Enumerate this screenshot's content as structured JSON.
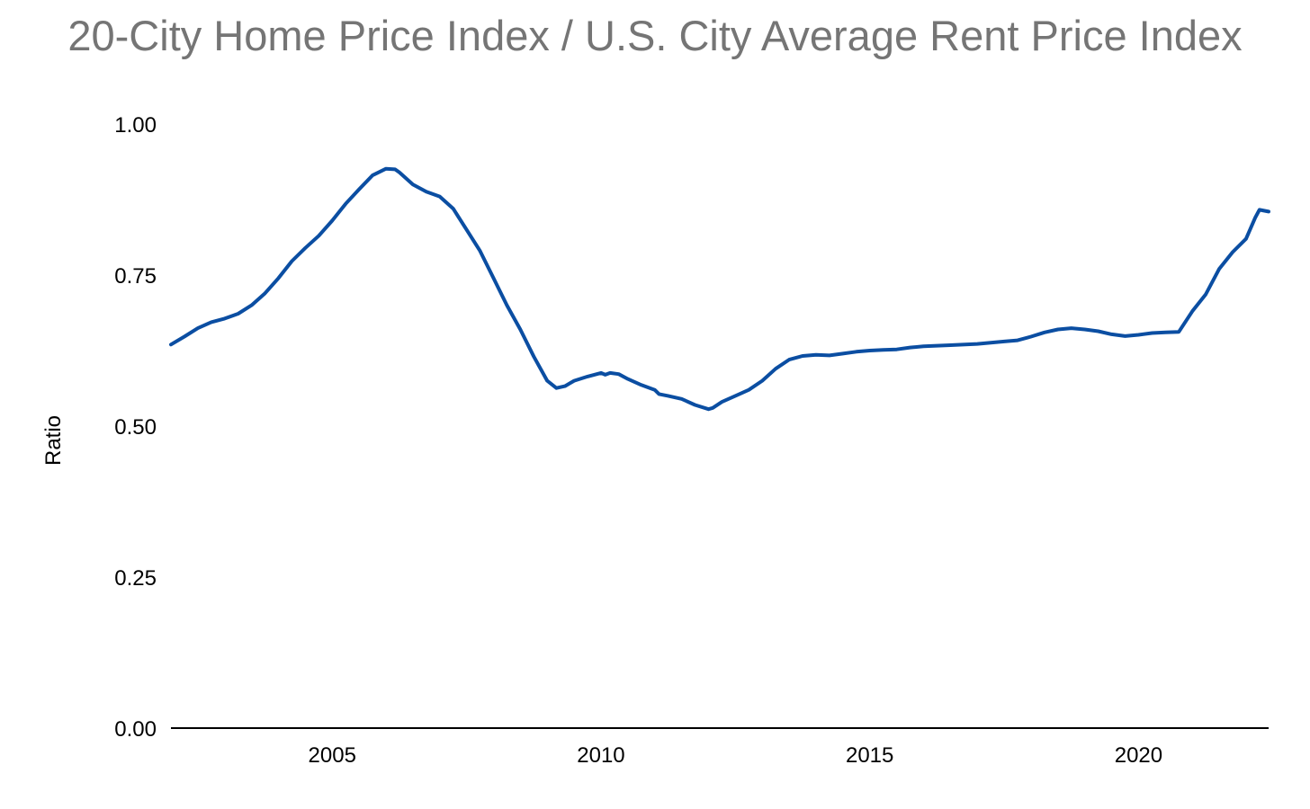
{
  "chart_data": {
    "type": "line",
    "title": "20-City Home Price Index / U.S. City Average Rent Price Index",
    "xlabel": "",
    "ylabel": "Ratio",
    "xlim": [
      2002.0,
      2022.42
    ],
    "ylim": [
      0,
      1.0
    ],
    "x_ticks": [
      2005,
      2010,
      2015,
      2020
    ],
    "x_tick_labels": [
      "2005",
      "2010",
      "2015",
      "2020"
    ],
    "y_ticks": [
      0,
      0.25,
      0.5,
      0.75,
      1.0
    ],
    "y_tick_labels": [
      "0.00",
      "0.25",
      "0.50",
      "0.75",
      "1.00"
    ],
    "grid": false,
    "legend": "none",
    "line_color": "#0b4ea2",
    "series": [
      {
        "x": [
          2002.0,
          2002.25,
          2002.5,
          2002.75,
          2003.0,
          2003.25,
          2003.5,
          2003.75,
          2004.0,
          2004.25,
          2004.5,
          2004.75,
          2005.0,
          2005.25,
          2005.5,
          2005.75,
          2006.0,
          2006.17,
          2006.25,
          2006.5,
          2006.75,
          2007.0,
          2007.25,
          2007.5,
          2007.75,
          2008.0,
          2008.25,
          2008.5,
          2008.75,
          2009.0,
          2009.17,
          2009.33,
          2009.5,
          2009.75,
          2010.0,
          2010.08,
          2010.17,
          2010.33,
          2010.5,
          2010.75,
          2011.0,
          2011.08,
          2011.25,
          2011.5,
          2011.75,
          2012.0,
          2012.08,
          2012.25,
          2012.5,
          2012.75,
          2013.0,
          2013.25,
          2013.5,
          2013.75,
          2014.0,
          2014.25,
          2014.5,
          2014.75,
          2015.0,
          2015.25,
          2015.5,
          2015.75,
          2016.0,
          2016.5,
          2017.0,
          2017.5,
          2017.75,
          2018.0,
          2018.25,
          2018.5,
          2018.75,
          2019.0,
          2019.25,
          2019.5,
          2019.75,
          2020.0,
          2020.25,
          2020.5,
          2020.75,
          2021.0,
          2021.25,
          2021.5,
          2021.75,
          2022.0,
          2022.17,
          2022.25,
          2022.42
        ],
        "values": [
          0.635,
          0.648,
          0.662,
          0.672,
          0.678,
          0.686,
          0.7,
          0.72,
          0.745,
          0.773,
          0.795,
          0.815,
          0.84,
          0.868,
          0.892,
          0.915,
          0.926,
          0.925,
          0.92,
          0.9,
          0.888,
          0.88,
          0.86,
          0.825,
          0.79,
          0.745,
          0.7,
          0.66,
          0.615,
          0.575,
          0.563,
          0.566,
          0.575,
          0.582,
          0.588,
          0.585,
          0.588,
          0.586,
          0.578,
          0.568,
          0.56,
          0.553,
          0.55,
          0.545,
          0.535,
          0.528,
          0.53,
          0.54,
          0.55,
          0.56,
          0.575,
          0.595,
          0.61,
          0.616,
          0.618,
          0.617,
          0.62,
          0.623,
          0.625,
          0.626,
          0.627,
          0.63,
          0.632,
          0.634,
          0.636,
          0.64,
          0.642,
          0.648,
          0.655,
          0.66,
          0.662,
          0.66,
          0.657,
          0.652,
          0.649,
          0.651,
          0.654,
          0.655,
          0.656,
          0.69,
          0.718,
          0.76,
          0.788,
          0.81,
          0.845,
          0.858,
          0.855
        ]
      }
    ]
  }
}
